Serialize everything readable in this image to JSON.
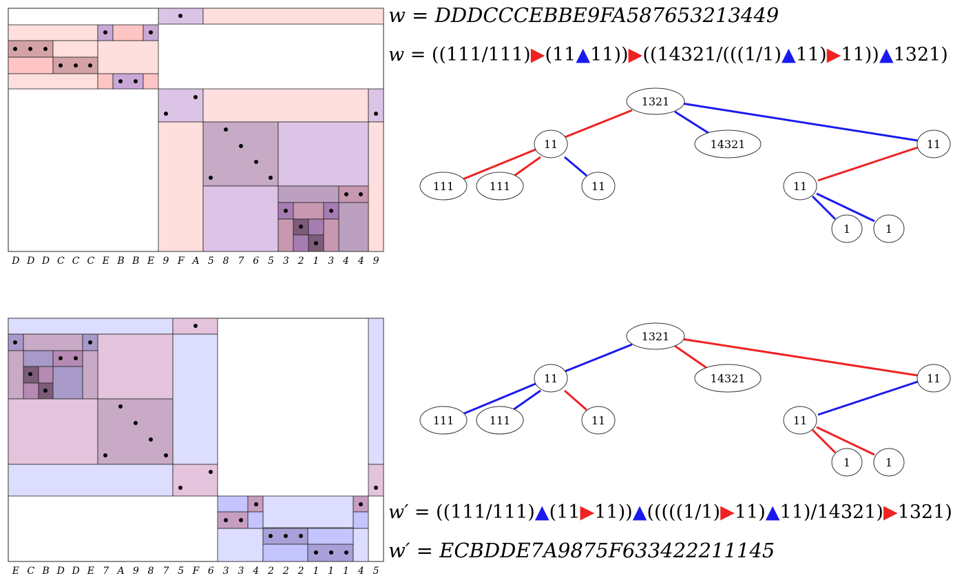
{
  "top": {
    "word": {
      "prefix": "w = ",
      "value": "DDDCCCEBBE9FA587653213449"
    },
    "expression": {
      "prefix": "w = ",
      "tokens": [
        "((111/111)",
        "▶",
        "(11",
        "▲",
        "11))",
        "▶",
        "((14321/(((1/1)",
        "▲",
        "11)",
        "▶",
        "11))",
        "▲",
        "1321)"
      ]
    },
    "letters": [
      "D",
      "D",
      "D",
      "C",
      "C",
      "C",
      "E",
      "B",
      "B",
      "E",
      "9",
      "F",
      "A",
      "5",
      "8",
      "7",
      "6",
      "5",
      "3",
      "2",
      "1",
      "3",
      "4",
      "4",
      "9"
    ],
    "tree": {
      "nodes": [
        "1321",
        "11",
        "14321",
        "11",
        "111",
        "111",
        "11",
        "11",
        "1",
        "1"
      ]
    }
  },
  "bottom": {
    "expression": {
      "prefix": "w′ = ",
      "tokens": [
        "((111/111)",
        "▲",
        "(11",
        "▶",
        "11))",
        "▲",
        "(((((1/1)",
        "▶",
        "11)",
        "▲",
        "11)/14321)",
        "▶",
        "1321)"
      ]
    },
    "word": {
      "prefix": "w′ = ",
      "value": "ECBDDE7A9875F633422211145"
    },
    "letters": [
      "E",
      "C",
      "B",
      "D",
      "D",
      "E",
      "7",
      "A",
      "9",
      "8",
      "7",
      "5",
      "F",
      "6",
      "3",
      "3",
      "4",
      "2",
      "2",
      "2",
      "1",
      "1",
      "1",
      "4",
      "5"
    ],
    "tree": {
      "nodes": [
        "1321",
        "11",
        "14321",
        "11",
        "111",
        "111",
        "11",
        "11",
        "1",
        "1"
      ]
    }
  },
  "colors": {
    "red": "#ee2222",
    "blue": "#1a1aee",
    "pink_fill": "#ffdede",
    "lavender_fill": "#ddddff",
    "purple_fill": "#dcc4e6"
  }
}
